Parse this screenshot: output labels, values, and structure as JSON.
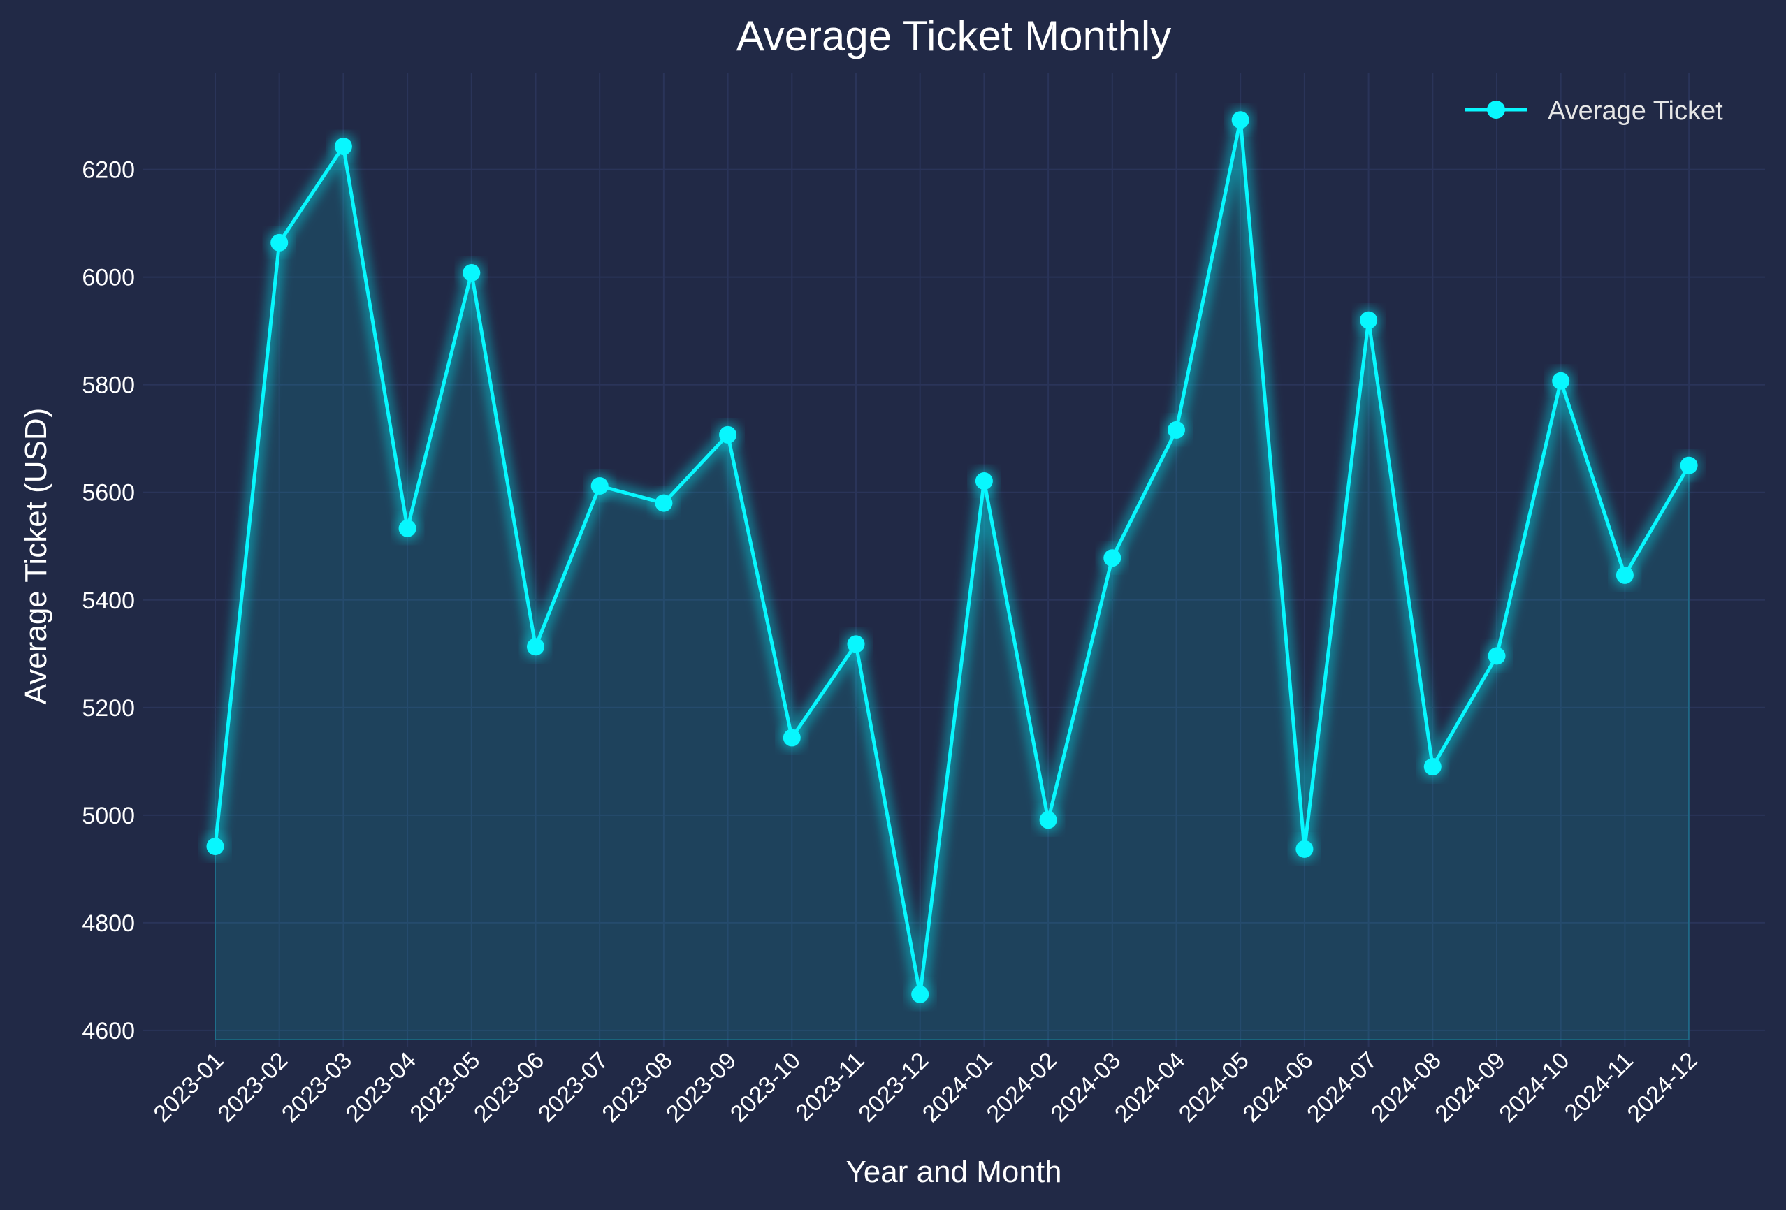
{
  "colors": {
    "background": "#212946",
    "line": "#08F7FE",
    "grid": "#2A3459",
    "text": "#FFFFFF",
    "legend_text": "#E6E6E6"
  },
  "chart_data": {
    "type": "line",
    "title": "Average Ticket Monthly",
    "xlabel": "Year and Month",
    "ylabel": "Average Ticket (USD)",
    "categories": [
      "2023-01",
      "2023-02",
      "2023-03",
      "2023-04",
      "2023-05",
      "2023-06",
      "2023-07",
      "2023-08",
      "2023-09",
      "2023-10",
      "2023-11",
      "2023-12",
      "2024-01",
      "2024-02",
      "2024-03",
      "2024-04",
      "2024-05",
      "2024-06",
      "2024-07",
      "2024-08",
      "2024-09",
      "2024-10",
      "2024-11",
      "2024-12"
    ],
    "series": [
      {
        "name": "Average Ticket",
        "values": [
          4942,
          6064,
          6243,
          5533,
          6008,
          5313,
          5612,
          5580,
          5707,
          5144,
          5318,
          4667,
          5621,
          4991,
          5478,
          5716,
          6292,
          4937,
          5920,
          5090,
          5296,
          5807,
          5446,
          5650
        ]
      }
    ],
    "yticks": [
      4600,
      4800,
      5000,
      5200,
      5400,
      5600,
      5800,
      6000,
      6200
    ],
    "ylim": [
      4583,
      6380
    ],
    "grid": true,
    "fill_under_line": true,
    "legend_position": "top-right"
  }
}
